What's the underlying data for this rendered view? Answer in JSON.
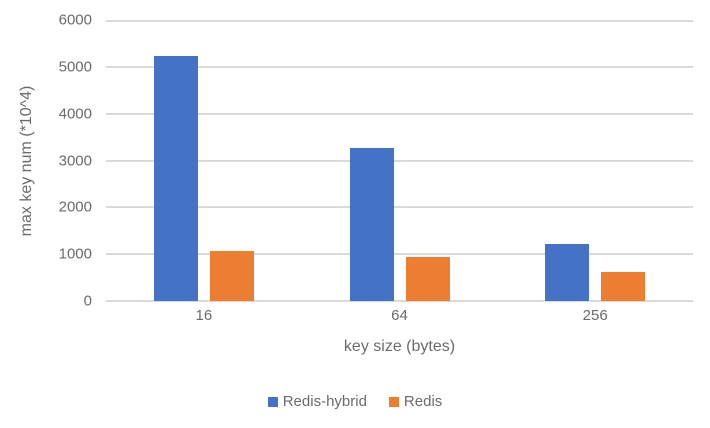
{
  "chart_data": {
    "type": "bar",
    "categories": [
      "16",
      "64",
      "256"
    ],
    "series": [
      {
        "name": "Redis-hybrid",
        "color": "#4472C4",
        "values": [
          5240,
          3260,
          1220
        ]
      },
      {
        "name": "Redis",
        "color": "#ED7D31",
        "values": [
          1070,
          930,
          610
        ]
      }
    ],
    "title": "",
    "xlabel": "key size (bytes)",
    "ylabel": "max key num (*10^4)",
    "ylim": [
      0,
      6000
    ],
    "ytick_step": 1000,
    "yticks": [
      "0",
      "1000",
      "2000",
      "3000",
      "4000",
      "5000",
      "6000"
    ],
    "grid": true,
    "legend_position": "bottom"
  },
  "colors": {
    "background": "#FFFFFF",
    "gridline": "#DADADA",
    "axis_text": "#6B6B6B"
  }
}
